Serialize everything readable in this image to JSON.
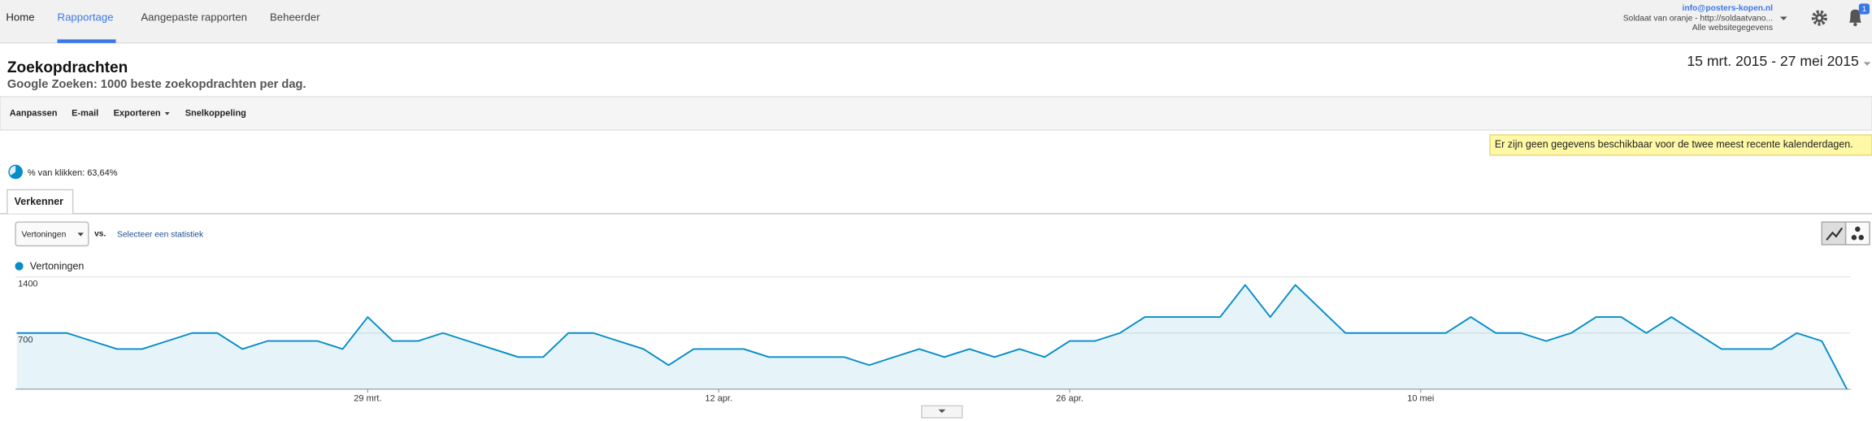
{
  "nav": {
    "tabs": [
      "Home",
      "Rapportage",
      "Aangepaste rapporten",
      "Beheerder"
    ],
    "account": {
      "email": "info@posters-kopen.nl",
      "property": "Soldaat van oranje - http://soldaatvano...",
      "view": "Alle websitegegevens"
    },
    "badge": "1"
  },
  "header": {
    "title": "Zoekopdrachten",
    "subtitle": "Google Zoeken: 1000 beste zoekopdrachten per dag.",
    "date_range": "15 mrt. 2015 - 27 mei 2015"
  },
  "toolbar": [
    "Aanpassen",
    "E-mail",
    "Exporteren",
    "Snelkoppeling"
  ],
  "notice": "Er zijn geen gegevens beschikbaar voor de twee meest recente kalenderdagen.",
  "summary": "% van klikken: 63,64%",
  "tab": "Verkenner",
  "controls": {
    "metric": "Vertoningen",
    "vs": "vs.",
    "select": "Selecteer een statistiek"
  },
  "chart_data": {
    "type": "line",
    "categories": [
      null,
      null,
      null,
      null,
      null,
      null,
      null,
      null,
      null,
      null,
      null,
      null,
      null,
      null,
      "29 mrt.",
      null,
      null,
      null,
      null,
      null,
      null,
      null,
      null,
      null,
      null,
      null,
      null,
      null,
      "12 apr.",
      null,
      null,
      null,
      null,
      null,
      null,
      null,
      null,
      null,
      null,
      null,
      null,
      null,
      "26 apr.",
      null,
      null,
      null,
      null,
      null,
      null,
      null,
      null,
      null,
      null,
      null,
      null,
      null,
      "10 mei",
      null,
      null,
      null,
      null,
      null,
      null,
      null,
      null,
      null,
      null,
      null,
      null,
      null,
      null,
      null,
      null,
      null
    ],
    "series": [
      {
        "name": "Vertoningen",
        "color": "#058dc7",
        "values": [
          700,
          700,
          700,
          600,
          500,
          500,
          600,
          700,
          700,
          500,
          600,
          600,
          600,
          500,
          900,
          600,
          600,
          700,
          600,
          500,
          400,
          400,
          700,
          700,
          600,
          500,
          300,
          500,
          500,
          500,
          400,
          400,
          400,
          400,
          300,
          400,
          500,
          400,
          500,
          400,
          500,
          400,
          600,
          600,
          700,
          900,
          900,
          900,
          900,
          1300,
          900,
          1300,
          1000,
          700,
          700,
          700,
          700,
          700,
          900,
          700,
          700,
          600,
          700,
          900,
          900,
          700,
          900,
          700,
          500,
          500,
          500,
          700,
          600,
          0
        ]
      }
    ],
    "ylim": [
      0,
      1400
    ],
    "yticks": [
      700,
      1400
    ],
    "grid": true
  }
}
